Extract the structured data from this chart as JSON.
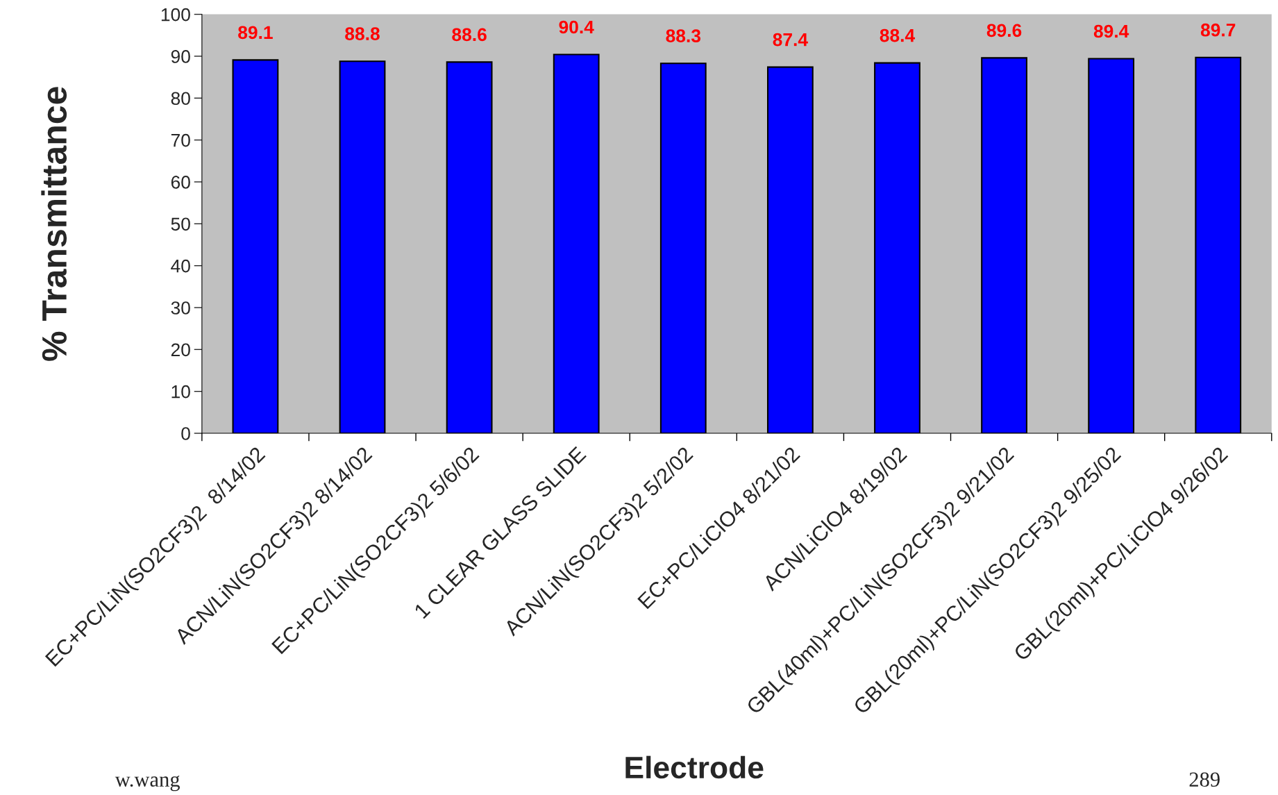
{
  "chart_data": {
    "type": "bar",
    "xlabel": "Electrode",
    "ylabel": "% Transmittance",
    "categories": [
      "EC+PC/LiN(SO2CF3)2  8/14/02",
      "ACN/LiN(SO2CF3)2 8/14/02",
      "EC+PC/LiN(SO2CF3)2 5/6/02",
      "1 CLEAR GLASS SLIDE",
      "ACN/LiN(SO2CF3)2 5/2/02",
      "EC+PC/LiClO4 8/21/02",
      "ACN/LiClO4 8/19/02",
      "GBL(40ml)+PC/LiN(SO2CF3)2 9/21/02",
      "GBL(20ml)+PC/LiN(SO2CF3)2 9/25/02",
      "GBL(20ml)+PC/LiClO4 9/26/02"
    ],
    "values": [
      89.1,
      88.8,
      88.6,
      90.4,
      88.3,
      87.4,
      88.4,
      89.6,
      89.4,
      89.7
    ],
    "color": "#0000ff",
    "data_labels": true,
    "ylim": [
      0,
      100
    ],
    "yticks": [
      0,
      10,
      20,
      30,
      40,
      50,
      60,
      70,
      80,
      90,
      100
    ],
    "grid": false,
    "annotations": [
      "w.wang",
      "289"
    ]
  }
}
